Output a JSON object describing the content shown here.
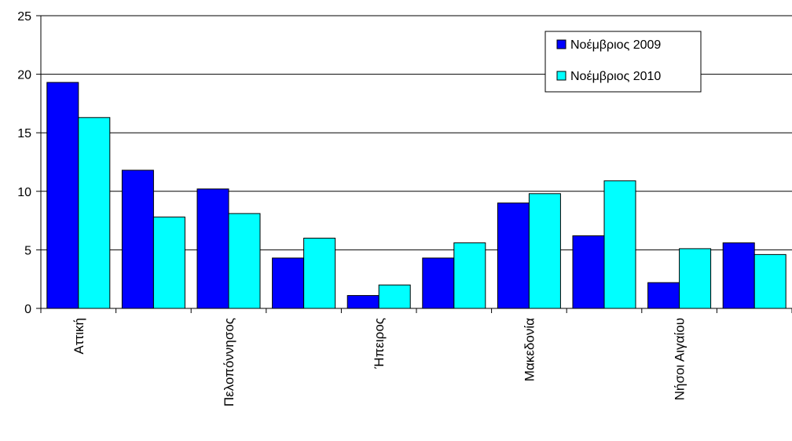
{
  "chart_data": {
    "type": "bar",
    "title": "",
    "xlabel": "",
    "ylabel": "",
    "ylim": [
      0,
      25
    ],
    "yticks": [
      0,
      5,
      10,
      15,
      20,
      25
    ],
    "grid": true,
    "legend_position": "top-right",
    "categories": [
      "Αττική",
      "",
      "Πελοπόννησος",
      "",
      "Ήπειρος",
      "",
      "Μακεδονία",
      "",
      "Νήσοι Αιγαίου",
      ""
    ],
    "series": [
      {
        "name": "Νοέμβριος 2009",
        "color": "#0000FF",
        "values": [
          19.3,
          11.8,
          10.2,
          4.3,
          1.1,
          4.3,
          9.0,
          6.2,
          2.2,
          5.6
        ]
      },
      {
        "name": "Νοέμβριος 2010",
        "color": "#00FFFF",
        "values": [
          16.3,
          7.8,
          8.1,
          6.0,
          2.0,
          5.6,
          9.8,
          10.9,
          5.1,
          4.6
        ]
      }
    ]
  }
}
